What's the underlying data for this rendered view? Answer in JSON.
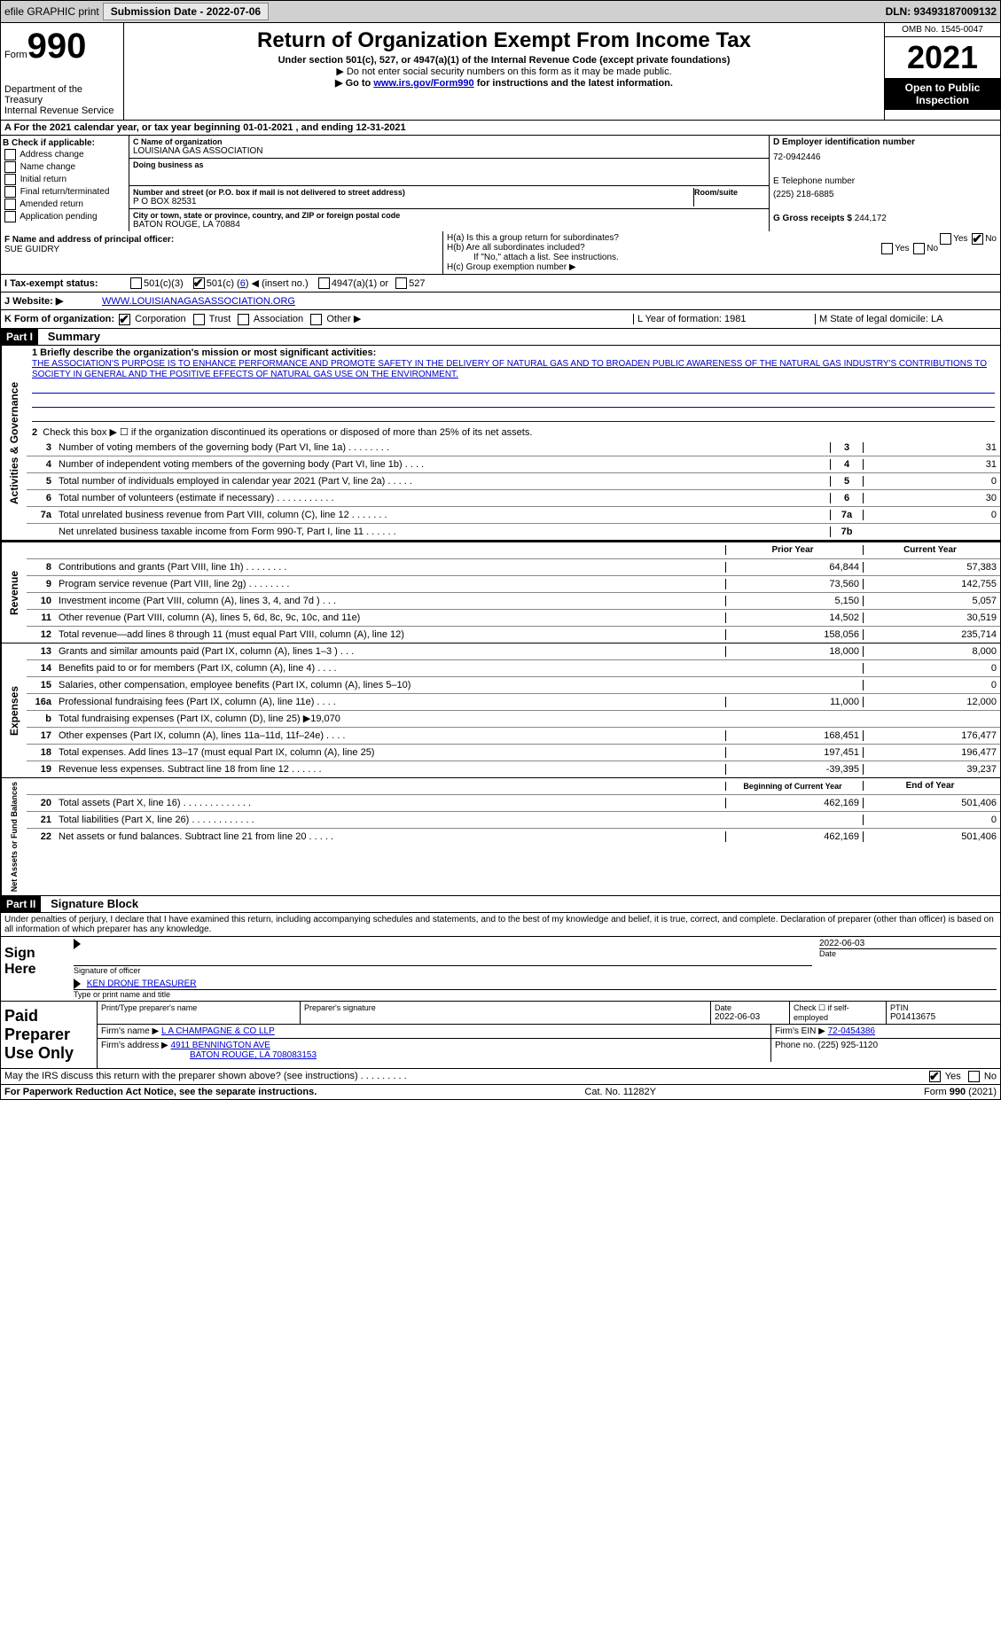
{
  "topBar": {
    "efile": "efile GRAPHIC print",
    "submissionDate": "Submission Date - 2022-07-06",
    "dln": "DLN: 93493187009132"
  },
  "header": {
    "formWord": "Form",
    "formNum": "990",
    "dept": "Department of the Treasury",
    "irs": "Internal Revenue Service",
    "title": "Return of Organization Exempt From Income Tax",
    "sub1": "Under section 501(c), 527, or 4947(a)(1) of the Internal Revenue Code (except private foundations)",
    "sub2": "▶ Do not enter social security numbers on this form as it may be made public.",
    "sub3a": "▶ Go to ",
    "sub3link": "www.irs.gov/Form990",
    "sub3b": " for instructions and the latest information.",
    "omb": "OMB No. 1545-0047",
    "year": "2021",
    "open": "Open to Public Inspection"
  },
  "rowA": "A For the 2021 calendar year, or tax year beginning 01-01-2021    , and ending 12-31-2021",
  "sectionB": {
    "title": "B Check if applicable:",
    "items": [
      "Address change",
      "Name change",
      "Initial return",
      "Final return/terminated",
      "Amended return",
      "Application pending"
    ]
  },
  "sectionC": {
    "nameLabel": "C Name of organization",
    "name": "LOUISIANA GAS ASSOCIATION",
    "dbaLabel": "Doing business as",
    "dba": "",
    "streetLabel": "Number and street (or P.O. box if mail is not delivered to street address)",
    "roomLabel": "Room/suite",
    "street": "P O BOX 82531",
    "cityLabel": "City or town, state or province, country, and ZIP or foreign postal code",
    "city": "BATON ROUGE, LA  70884"
  },
  "sectionD": {
    "einLabel": "D Employer identification number",
    "ein": "72-0942446",
    "phoneLabel": "E Telephone number",
    "phone": "(225) 218-6885",
    "grossLabel": "G Gross receipts $",
    "gross": "244,172"
  },
  "sectionF": {
    "label": "F Name and address of principal officer:",
    "name": "SUE GUIDRY"
  },
  "sectionH": {
    "ha": "H(a)  Is this a group return for subordinates?",
    "hb": "H(b)  Are all subordinates included?",
    "hbNote": "If \"No,\" attach a list. See instructions.",
    "hc": "H(c)  Group exemption number ▶",
    "yes": "Yes",
    "no": "No"
  },
  "rowI": {
    "label": "I   Tax-exempt status:",
    "opt1": "501(c)(3)",
    "opt2a": "501(c) (",
    "opt2b": "6",
    "opt2c": ") ◀ (insert no.)",
    "opt3": "4947(a)(1) or",
    "opt4": "527"
  },
  "rowJ": {
    "label": "J   Website: ▶",
    "value": "WWW.LOUISIANAGASASSOCIATION.ORG"
  },
  "rowK": {
    "label": "K Form of organization:",
    "opts": [
      "Corporation",
      "Trust",
      "Association",
      "Other ▶"
    ]
  },
  "rowL": {
    "year": "L Year of formation: 1981",
    "state": "M State of legal domicile: LA"
  },
  "part1": {
    "header": "Part I",
    "title": "Summary"
  },
  "summary": {
    "line1Label": "1  Briefly describe the organization's mission or most significant activities:",
    "line1Text": "THE ASSOCIATION'S PURPOSE IS TO ENHANCE PERFORMANCE AND PROMOTE SAFETY IN THE DELIVERY OF NATURAL GAS AND TO BROADEN PUBLIC AWARENESS OF THE NATURAL GAS INDUSTRY'S CONTRIBUTIONS TO SOCIETY IN GENERAL AND THE POSITIVE EFFECTS OF NATURAL GAS USE ON THE ENVIRONMENT.",
    "line2": "Check this box ▶ ☐  if the organization discontinued its operations or disposed of more than 25% of its net assets.",
    "lines": [
      {
        "n": "3",
        "t": "Number of voting members of the governing body (Part VI, line 1a)   .    .    .    .    .    .    .    .",
        "b": "3",
        "v": "31"
      },
      {
        "n": "4",
        "t": "Number of independent voting members of the governing body (Part VI, line 1b)   .    .    .    .",
        "b": "4",
        "v": "31"
      },
      {
        "n": "5",
        "t": "Total number of individuals employed in calendar year 2021 (Part V, line 2a)   .    .    .    .    .",
        "b": "5",
        "v": "0"
      },
      {
        "n": "6",
        "t": "Total number of volunteers (estimate if necessary)    .    .    .    .    .    .    .    .    .    .    .",
        "b": "6",
        "v": "30"
      },
      {
        "n": "7a",
        "t": "Total unrelated business revenue from Part VIII, column (C), line 12   .    .    .    .    .    .    .",
        "b": "7a",
        "v": "0"
      },
      {
        "n": "",
        "t": "Net unrelated business taxable income from Form 990-T, Part I, line 11    .    .    .    .    .    .",
        "b": "7b",
        "v": ""
      }
    ],
    "priorYear": "Prior Year",
    "currentYear": "Current Year",
    "revenueLines": [
      {
        "n": "8",
        "t": "Contributions and grants (Part VIII, line 1h)   .    .    .    .    .    .    .    .",
        "p": "64,844",
        "c": "57,383"
      },
      {
        "n": "9",
        "t": "Program service revenue (Part VIII, line 2g)    .    .    .    .    .    .    .    .",
        "p": "73,560",
        "c": "142,755"
      },
      {
        "n": "10",
        "t": "Investment income (Part VIII, column (A), lines 3, 4, and 7d )   .    .    .",
        "p": "5,150",
        "c": "5,057"
      },
      {
        "n": "11",
        "t": "Other revenue (Part VIII, column (A), lines 5, 6d, 8c, 9c, 10c, and 11e)",
        "p": "14,502",
        "c": "30,519"
      },
      {
        "n": "12",
        "t": "Total revenue—add lines 8 through 11 (must equal Part VIII, column (A), line 12)",
        "p": "158,056",
        "c": "235,714"
      }
    ],
    "expenseLines": [
      {
        "n": "13",
        "t": "Grants and similar amounts paid (Part IX, column (A), lines 1–3 )   .    .    .",
        "p": "18,000",
        "c": "8,000"
      },
      {
        "n": "14",
        "t": "Benefits paid to or for members (Part IX, column (A), line 4)   .    .    .    .",
        "p": "",
        "c": "0"
      },
      {
        "n": "15",
        "t": "Salaries, other compensation, employee benefits (Part IX, column (A), lines 5–10)",
        "p": "",
        "c": "0"
      },
      {
        "n": "16a",
        "t": "Professional fundraising fees (Part IX, column (A), line 11e)   .    .    .    .",
        "p": "11,000",
        "c": "12,000"
      },
      {
        "n": "b",
        "t": "Total fundraising expenses (Part IX, column (D), line 25) ▶19,070",
        "p": "",
        "c": "",
        "shaded": true
      },
      {
        "n": "17",
        "t": "Other expenses (Part IX, column (A), lines 11a–11d, 11f–24e)    .    .    .    .",
        "p": "168,451",
        "c": "176,477"
      },
      {
        "n": "18",
        "t": "Total expenses. Add lines 13–17 (must equal Part IX, column (A), line 25)",
        "p": "197,451",
        "c": "196,477"
      },
      {
        "n": "19",
        "t": "Revenue less expenses. Subtract line 18 from line 12   .    .    .    .    .    .",
        "p": "-39,395",
        "c": "39,237"
      }
    ],
    "begYear": "Beginning of Current Year",
    "endYear": "End of Year",
    "netLines": [
      {
        "n": "20",
        "t": "Total assets (Part X, line 16)   .    .    .    .    .    .    .    .    .    .    .    .    .",
        "p": "462,169",
        "c": "501,406"
      },
      {
        "n": "21",
        "t": "Total liabilities (Part X, line 26)   .    .    .    .    .    .    .    .    .    .    .    .",
        "p": "",
        "c": "0"
      },
      {
        "n": "22",
        "t": "Net assets or fund balances. Subtract line 21 from line 20   .    .    .    .    .",
        "p": "462,169",
        "c": "501,406"
      }
    ]
  },
  "sideLabels": {
    "act": "Activities & Governance",
    "rev": "Revenue",
    "exp": "Expenses",
    "net": "Net Assets or Fund Balances"
  },
  "part2": {
    "header": "Part II",
    "title": "Signature Block",
    "penalty": "Under penalties of perjury, I declare that I have examined this return, including accompanying schedules and statements, and to the best of my knowledge and belief, it is true, correct, and complete. Declaration of preparer (other than officer) is based on all information of which preparer has any knowledge."
  },
  "sign": {
    "signHere": "Sign Here",
    "sigOfficer": "Signature of officer",
    "date": "Date",
    "dateVal": "2022-06-03",
    "name": "KEN DRONE TREASURER",
    "nameLabel": "Type or print name and title"
  },
  "paidPrep": {
    "title": "Paid Preparer Use Only",
    "printLabel": "Print/Type preparer's name",
    "sigLabel": "Preparer's signature",
    "dateLabel": "Date",
    "dateVal": "2022-06-03",
    "checkLabel": "Check ☐ if self-employed",
    "ptinLabel": "PTIN",
    "ptin": "P01413675",
    "firmNameLabel": "Firm's name    ▶",
    "firmName": "L A CHAMPAGNE & CO LLP",
    "firmEinLabel": "Firm's EIN ▶",
    "firmEin": "72-0454386",
    "firmAddrLabel": "Firm's address ▶",
    "firmAddr1": "4911 BENNINGTON AVE",
    "firmAddr2": "BATON ROUGE, LA  708083153",
    "phoneLabel": "Phone no.",
    "phone": "(225) 925-1120"
  },
  "discuss": "May the IRS discuss this return with the preparer shown above? (see instructions)    .    .    .    .    .    .    .    .    .",
  "footer": {
    "left": "For Paperwork Reduction Act Notice, see the separate instructions.",
    "mid": "Cat. No. 11282Y",
    "right": "Form 990 (2021)"
  }
}
